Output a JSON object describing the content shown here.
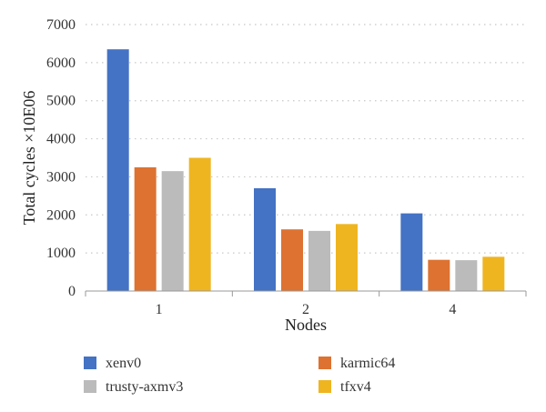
{
  "chart_data": {
    "type": "bar",
    "categories": [
      "1",
      "2",
      "4"
    ],
    "series": [
      {
        "name": "xenv0",
        "color": "#4472c4",
        "values": [
          6350,
          2700,
          2040
        ]
      },
      {
        "name": "karmic64",
        "color": "#dd7231",
        "values": [
          3250,
          1620,
          820
        ]
      },
      {
        "name": "trusty-axmv3",
        "color": "#bbbbbb",
        "values": [
          3150,
          1580,
          810
        ]
      },
      {
        "name": "tfxv4",
        "color": "#efb521",
        "values": [
          3500,
          1760,
          900
        ]
      }
    ],
    "xlabel": "Nodes",
    "ylabel": "Total cycles ×10E06",
    "ylim": [
      0,
      7000
    ],
    "yticks": [
      "0",
      "1000",
      "2000",
      "3000",
      "4000",
      "5000",
      "6000",
      "7000"
    ],
    "grid": true,
    "legend_position": "bottom"
  }
}
